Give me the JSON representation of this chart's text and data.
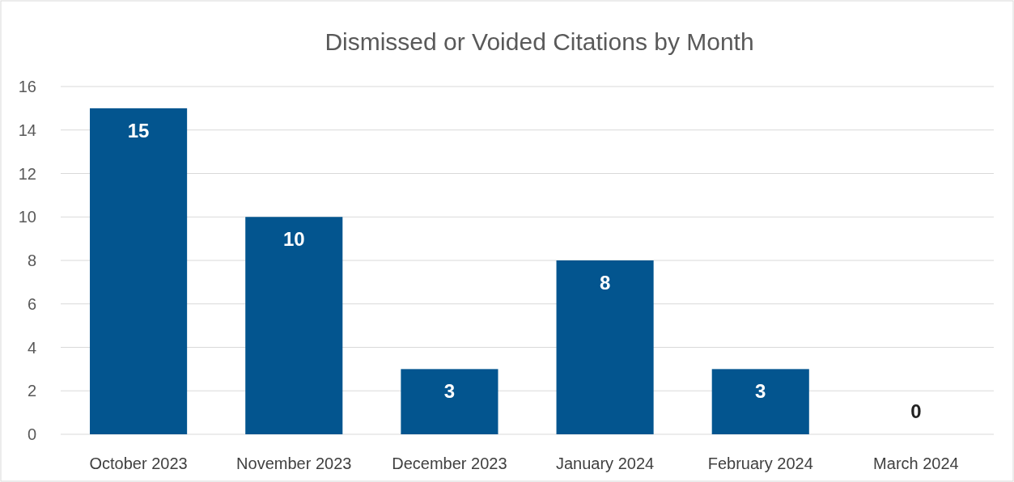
{
  "chart_data": {
    "type": "bar",
    "title": "Dismissed or Voided Citations by Month",
    "categories": [
      "October 2023",
      "November 2023",
      "December 2023",
      "January 2024",
      "February 2024",
      "March 2024"
    ],
    "values": [
      15,
      10,
      3,
      8,
      3,
      0
    ],
    "color": "#03558f",
    "ylim": [
      0,
      16
    ],
    "yticks": [
      0,
      2,
      4,
      6,
      8,
      10,
      12,
      14,
      16
    ],
    "grid": "y",
    "data_labels": true
  }
}
